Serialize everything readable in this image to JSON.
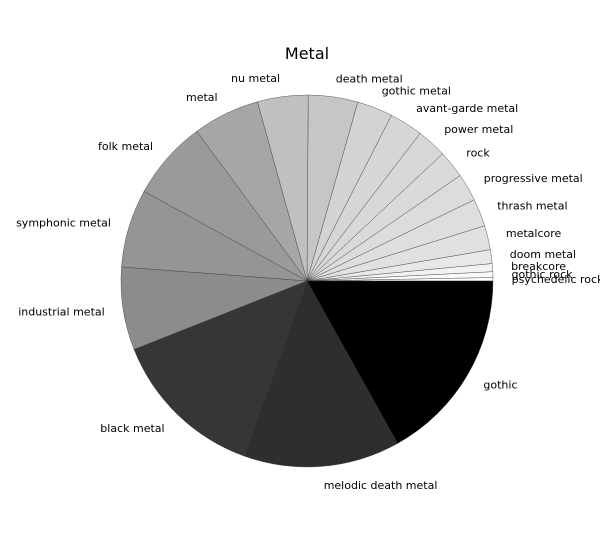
{
  "chart_data": {
    "type": "pie",
    "title": "Metal",
    "start_angle_deg": 0,
    "direction": "counterclockwise",
    "slices": [
      {
        "label": "psychedelic rock",
        "value": 0.3,
        "color": "#ffffff"
      },
      {
        "label": "gothic rock",
        "value": 0.5,
        "color": "#fafafa"
      },
      {
        "label": "breakcore",
        "value": 0.7,
        "color": "#f2f2f2"
      },
      {
        "label": "doom metal",
        "value": 1.2,
        "color": "#e8e8e8"
      },
      {
        "label": "metalcore",
        "value": 2.1,
        "color": "#e0e0e0"
      },
      {
        "label": "thrash metal",
        "value": 2.4,
        "color": "#dedede"
      },
      {
        "label": "progressive metal",
        "value": 2.4,
        "color": "#dcdcdc"
      },
      {
        "label": "rock",
        "value": 2.4,
        "color": "#dadada"
      },
      {
        "label": "power metal",
        "value": 2.6,
        "color": "#d8d8d8"
      },
      {
        "label": "avant-garde metal",
        "value": 2.9,
        "color": "#d6d6d6"
      },
      {
        "label": "gothic metal",
        "value": 3.1,
        "color": "#d3d3d3"
      },
      {
        "label": "death metal",
        "value": 4.3,
        "color": "#c6c6c6"
      },
      {
        "label": "nu metal",
        "value": 4.4,
        "color": "#c0c0c0"
      },
      {
        "label": "metal",
        "value": 5.8,
        "color": "#a6a6a6"
      },
      {
        "label": "folk metal",
        "value": 6.9,
        "color": "#9a9a9a"
      },
      {
        "label": "symphonic metal",
        "value": 6.8,
        "color": "#959595"
      },
      {
        "label": "industrial metal",
        "value": 7.2,
        "color": "#8c8c8c"
      },
      {
        "label": "black metal",
        "value": 13.5,
        "color": "#363636"
      },
      {
        "label": "melodic death metal",
        "value": 13.6,
        "color": "#2e2e2e"
      },
      {
        "label": "gothic",
        "value": 16.9,
        "color": "#000000"
      }
    ]
  }
}
